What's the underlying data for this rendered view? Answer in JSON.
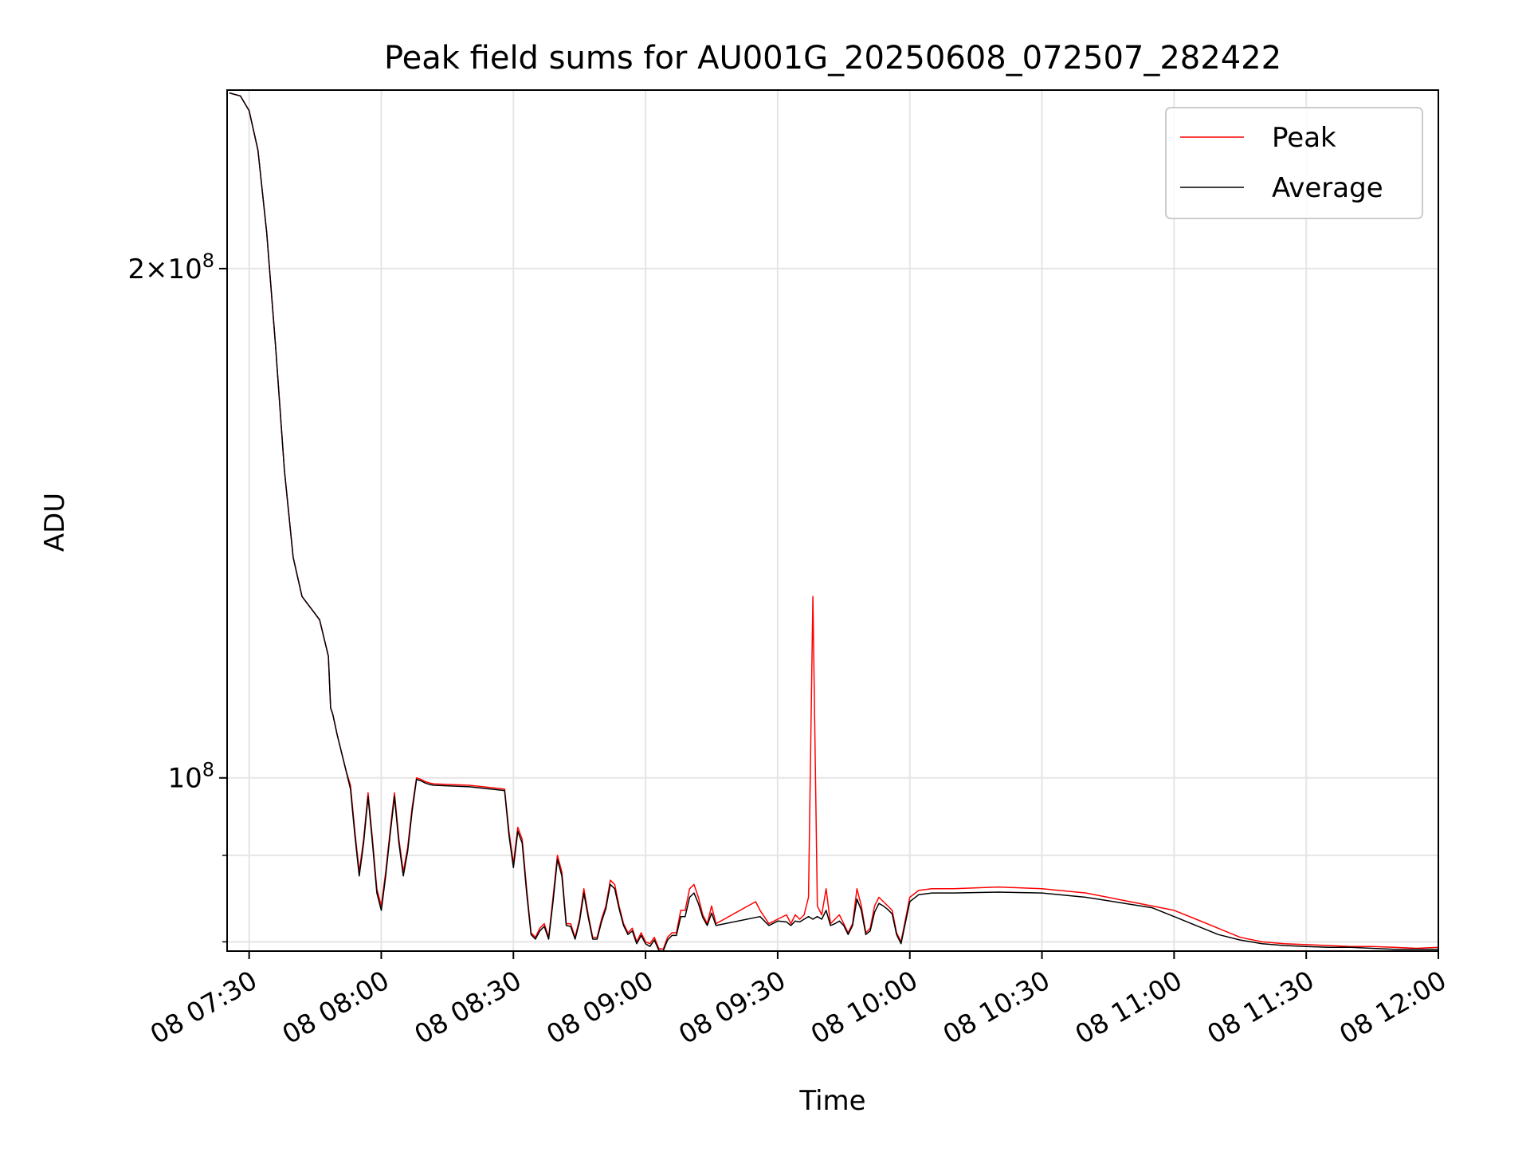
{
  "chart_data": {
    "type": "line",
    "title": "Peak field sums for AU001G_20250608_072507_282422",
    "xlabel": "Time",
    "ylabel": "ADU",
    "y_scale": "log",
    "grid": true,
    "legend_position": "top-right",
    "xlim": [
      "2025-06-08 07:25",
      "2025-06-08 12:00"
    ],
    "ylim": [
      79000000,
      255000000
    ],
    "x_ticks": [
      {
        "value": "2025-06-08 07:30",
        "label": "08 07:30"
      },
      {
        "value": "2025-06-08 08:00",
        "label": "08 08:00"
      },
      {
        "value": "2025-06-08 08:30",
        "label": "08 08:30"
      },
      {
        "value": "2025-06-08 09:00",
        "label": "08 09:00"
      },
      {
        "value": "2025-06-08 09:30",
        "label": "08 09:30"
      },
      {
        "value": "2025-06-08 10:00",
        "label": "08 10:00"
      },
      {
        "value": "2025-06-08 10:30",
        "label": "08 10:30"
      },
      {
        "value": "2025-06-08 11:00",
        "label": "08 11:00"
      },
      {
        "value": "2025-06-08 11:30",
        "label": "08 11:30"
      },
      {
        "value": "2025-06-08 12:00",
        "label": "08 12:00"
      }
    ],
    "y_major_ticks": [
      {
        "value": 100000000,
        "base": "10",
        "exp": "8",
        "coef": ""
      },
      {
        "value": 200000000,
        "base": "10",
        "exp": "8",
        "coef": "2×"
      }
    ],
    "y_minor_ticks": [
      80000000,
      90000000
    ],
    "series": [
      {
        "name": "Peak",
        "color": "#ff0000",
        "x": [
          "2025-06-08 07:25:30",
          "2025-06-08 07:28:00",
          "2025-06-08 07:30:00",
          "2025-06-08 07:32:00",
          "2025-06-08 07:34:00",
          "2025-06-08 07:36:00",
          "2025-06-08 07:38:00",
          "2025-06-08 07:40:00",
          "2025-06-08 07:42:00",
          "2025-06-08 07:44:00",
          "2025-06-08 07:46:00",
          "2025-06-08 07:48:00",
          "2025-06-08 07:48:30",
          "2025-06-08 07:49:00",
          "2025-06-08 07:50:00",
          "2025-06-08 07:52:00",
          "2025-06-08 07:53:00",
          "2025-06-08 07:54:00",
          "2025-06-08 07:55:00",
          "2025-06-08 07:56:00",
          "2025-06-08 07:57:00",
          "2025-06-08 07:58:00",
          "2025-06-08 07:59:00",
          "2025-06-08 08:00:00",
          "2025-06-08 08:01:00",
          "2025-06-08 08:02:00",
          "2025-06-08 08:03:00",
          "2025-06-08 08:04:00",
          "2025-06-08 08:05:00",
          "2025-06-08 08:06:00",
          "2025-06-08 08:07:00",
          "2025-06-08 08:08:00",
          "2025-06-08 08:09:00",
          "2025-06-08 08:10:00",
          "2025-06-08 08:11:00",
          "2025-06-08 08:12:00",
          "2025-06-08 08:20:00",
          "2025-06-08 08:28:00",
          "2025-06-08 08:29:00",
          "2025-06-08 08:30:00",
          "2025-06-08 08:31:00",
          "2025-06-08 08:32:00",
          "2025-06-08 08:33:00",
          "2025-06-08 08:34:00",
          "2025-06-08 08:35:00",
          "2025-06-08 08:36:00",
          "2025-06-08 08:37:00",
          "2025-06-08 08:38:00",
          "2025-06-08 08:39:00",
          "2025-06-08 08:40:00",
          "2025-06-08 08:41:00",
          "2025-06-08 08:42:00",
          "2025-06-08 08:43:00",
          "2025-06-08 08:44:00",
          "2025-06-08 08:45:00",
          "2025-06-08 08:46:00",
          "2025-06-08 08:47:00",
          "2025-06-08 08:48:00",
          "2025-06-08 08:49:00",
          "2025-06-08 08:50:00",
          "2025-06-08 08:51:00",
          "2025-06-08 08:52:00",
          "2025-06-08 08:53:00",
          "2025-06-08 08:54:00",
          "2025-06-08 08:55:00",
          "2025-06-08 08:56:00",
          "2025-06-08 08:57:00",
          "2025-06-08 08:58:00",
          "2025-06-08 08:59:00",
          "2025-06-08 09:00:00",
          "2025-06-08 09:01:00",
          "2025-06-08 09:02:00",
          "2025-06-08 09:03:00",
          "2025-06-08 09:04:00",
          "2025-06-08 09:05:00",
          "2025-06-08 09:06:00",
          "2025-06-08 09:07:00",
          "2025-06-08 09:08:00",
          "2025-06-08 09:09:00",
          "2025-06-08 09:10:00",
          "2025-06-08 09:11:00",
          "2025-06-08 09:12:00",
          "2025-06-08 09:13:00",
          "2025-06-08 09:14:00",
          "2025-06-08 09:15:00",
          "2025-06-08 09:16:00",
          "2025-06-08 09:25:00",
          "2025-06-08 09:26:00",
          "2025-06-08 09:28:00",
          "2025-06-08 09:30:00",
          "2025-06-08 09:32:00",
          "2025-06-08 09:33:00",
          "2025-06-08 09:34:00",
          "2025-06-08 09:35:00",
          "2025-06-08 09:36:00",
          "2025-06-08 09:37:00",
          "2025-06-08 09:38:00",
          "2025-06-08 09:39:00",
          "2025-06-08 09:40:00",
          "2025-06-08 09:41:00",
          "2025-06-08 09:42:00",
          "2025-06-08 09:43:00",
          "2025-06-08 09:44:00",
          "2025-06-08 09:45:00",
          "2025-06-08 09:46:00",
          "2025-06-08 09:47:00",
          "2025-06-08 09:48:00",
          "2025-06-08 09:49:00",
          "2025-06-08 09:50:00",
          "2025-06-08 09:51:00",
          "2025-06-08 09:52:00",
          "2025-06-08 09:53:00",
          "2025-06-08 09:54:00",
          "2025-06-08 09:55:00",
          "2025-06-08 09:56:00",
          "2025-06-08 09:57:00",
          "2025-06-08 09:58:00",
          "2025-06-08 10:00:00",
          "2025-06-08 10:02:00",
          "2025-06-08 10:05:00",
          "2025-06-08 10:10:00",
          "2025-06-08 10:20:00",
          "2025-06-08 10:30:00",
          "2025-06-08 10:40:00",
          "2025-06-08 10:50:00",
          "2025-06-08 10:55:00",
          "2025-06-08 11:00:00",
          "2025-06-08 11:05:00",
          "2025-06-08 11:10:00",
          "2025-06-08 11:15:00",
          "2025-06-08 11:20:00",
          "2025-06-08 11:25:00",
          "2025-06-08 11:30:00",
          "2025-06-08 11:35:00",
          "2025-06-08 11:40:00",
          "2025-06-08 11:45:00",
          "2025-06-08 11:50:00",
          "2025-06-08 11:55:00",
          "2025-06-08 12:00:00"
        ],
        "y": [
          254000000,
          253000000,
          248000000,
          235000000,
          210000000,
          180000000,
          152000000,
          135000000,
          128000000,
          126000000,
          124000000,
          118000000,
          110000000,
          109000000,
          106000000,
          101000000,
          99000000,
          93000000,
          88000000,
          92000000,
          98000000,
          92000000,
          86000000,
          84000000,
          88000000,
          93000000,
          98000000,
          92000000,
          88000000,
          91000000,
          96000000,
          100000000,
          99800000,
          99500000,
          99300000,
          99200000,
          99000000,
          98500000,
          93000000,
          89000000,
          93500000,
          92000000,
          86000000,
          81000000,
          80500000,
          81500000,
          82000000,
          80500000,
          85000000,
          90000000,
          88000000,
          82000000,
          82000000,
          80500000,
          82500000,
          86000000,
          83000000,
          80500000,
          80500000,
          82500000,
          84000000,
          87000000,
          86500000,
          84000000,
          82000000,
          81000000,
          81500000,
          80000000,
          81000000,
          80000000,
          79800000,
          80500000,
          79300000,
          79200000,
          80500000,
          81000000,
          81000000,
          83500000,
          83500000,
          86000000,
          86500000,
          85000000,
          83000000,
          82000000,
          84000000,
          82000000,
          84500000,
          83500000,
          82000000,
          82500000,
          83000000,
          82000000,
          83000000,
          82500000,
          83000000,
          85000000,
          128000000,
          84000000,
          83000000,
          86000000,
          82000000,
          82500000,
          83000000,
          82000000,
          81000000,
          82000000,
          86000000,
          84000000,
          81000000,
          81500000,
          84000000,
          85000000,
          84500000,
          84000000,
          83500000,
          81000000,
          80000000,
          85000000,
          85800000,
          86000000,
          86000000,
          86200000,
          86000000,
          85500000,
          84500000,
          84000000,
          83500000,
          82500000,
          81500000,
          80500000,
          80000000,
          79800000,
          79700000,
          79600000,
          79500000,
          79500000,
          79400000,
          79300000,
          79400000
        ]
      },
      {
        "name": "Average",
        "color": "#000000",
        "x": [
          "2025-06-08 07:25:30",
          "2025-06-08 07:28:00",
          "2025-06-08 07:30:00",
          "2025-06-08 07:32:00",
          "2025-06-08 07:34:00",
          "2025-06-08 07:36:00",
          "2025-06-08 07:38:00",
          "2025-06-08 07:40:00",
          "2025-06-08 07:42:00",
          "2025-06-08 07:44:00",
          "2025-06-08 07:46:00",
          "2025-06-08 07:48:00",
          "2025-06-08 07:48:30",
          "2025-06-08 07:49:00",
          "2025-06-08 07:50:00",
          "2025-06-08 07:52:00",
          "2025-06-08 07:53:00",
          "2025-06-08 07:54:00",
          "2025-06-08 07:55:00",
          "2025-06-08 07:56:00",
          "2025-06-08 07:57:00",
          "2025-06-08 07:58:00",
          "2025-06-08 07:59:00",
          "2025-06-08 08:00:00",
          "2025-06-08 08:01:00",
          "2025-06-08 08:02:00",
          "2025-06-08 08:03:00",
          "2025-06-08 08:04:00",
          "2025-06-08 08:05:00",
          "2025-06-08 08:06:00",
          "2025-06-08 08:07:00",
          "2025-06-08 08:08:00",
          "2025-06-08 08:09:00",
          "2025-06-08 08:10:00",
          "2025-06-08 08:11:00",
          "2025-06-08 08:12:00",
          "2025-06-08 08:20:00",
          "2025-06-08 08:28:00",
          "2025-06-08 08:29:00",
          "2025-06-08 08:30:00",
          "2025-06-08 08:31:00",
          "2025-06-08 08:32:00",
          "2025-06-08 08:33:00",
          "2025-06-08 08:34:00",
          "2025-06-08 08:35:00",
          "2025-06-08 08:36:00",
          "2025-06-08 08:37:00",
          "2025-06-08 08:38:00",
          "2025-06-08 08:39:00",
          "2025-06-08 08:40:00",
          "2025-06-08 08:41:00",
          "2025-06-08 08:42:00",
          "2025-06-08 08:43:00",
          "2025-06-08 08:44:00",
          "2025-06-08 08:45:00",
          "2025-06-08 08:46:00",
          "2025-06-08 08:47:00",
          "2025-06-08 08:48:00",
          "2025-06-08 08:49:00",
          "2025-06-08 08:50:00",
          "2025-06-08 08:51:00",
          "2025-06-08 08:52:00",
          "2025-06-08 08:53:00",
          "2025-06-08 08:54:00",
          "2025-06-08 08:55:00",
          "2025-06-08 08:56:00",
          "2025-06-08 08:57:00",
          "2025-06-08 08:58:00",
          "2025-06-08 08:59:00",
          "2025-06-08 09:00:00",
          "2025-06-08 09:01:00",
          "2025-06-08 09:02:00",
          "2025-06-08 09:03:00",
          "2025-06-08 09:04:00",
          "2025-06-08 09:05:00",
          "2025-06-08 09:06:00",
          "2025-06-08 09:07:00",
          "2025-06-08 09:08:00",
          "2025-06-08 09:09:00",
          "2025-06-08 09:10:00",
          "2025-06-08 09:11:00",
          "2025-06-08 09:12:00",
          "2025-06-08 09:13:00",
          "2025-06-08 09:14:00",
          "2025-06-08 09:15:00",
          "2025-06-08 09:16:00",
          "2025-06-08 09:25:00",
          "2025-06-08 09:26:00",
          "2025-06-08 09:28:00",
          "2025-06-08 09:30:00",
          "2025-06-08 09:32:00",
          "2025-06-08 09:33:00",
          "2025-06-08 09:34:00",
          "2025-06-08 09:35:00",
          "2025-06-08 09:36:00",
          "2025-06-08 09:37:00",
          "2025-06-08 09:38:00",
          "2025-06-08 09:39:00",
          "2025-06-08 09:40:00",
          "2025-06-08 09:41:00",
          "2025-06-08 09:42:00",
          "2025-06-08 09:43:00",
          "2025-06-08 09:44:00",
          "2025-06-08 09:45:00",
          "2025-06-08 09:46:00",
          "2025-06-08 09:47:00",
          "2025-06-08 09:48:00",
          "2025-06-08 09:49:00",
          "2025-06-08 09:50:00",
          "2025-06-08 09:51:00",
          "2025-06-08 09:52:00",
          "2025-06-08 09:53:00",
          "2025-06-08 09:54:00",
          "2025-06-08 09:55:00",
          "2025-06-08 09:56:00",
          "2025-06-08 09:57:00",
          "2025-06-08 09:58:00",
          "2025-06-08 10:00:00",
          "2025-06-08 10:02:00",
          "2025-06-08 10:05:00",
          "2025-06-08 10:10:00",
          "2025-06-08 10:20:00",
          "2025-06-08 10:30:00",
          "2025-06-08 10:40:00",
          "2025-06-08 10:50:00",
          "2025-06-08 10:55:00",
          "2025-06-08 11:00:00",
          "2025-06-08 11:05:00",
          "2025-06-08 11:10:00",
          "2025-06-08 11:15:00",
          "2025-06-08 11:20:00",
          "2025-06-08 11:25:00",
          "2025-06-08 11:30:00",
          "2025-06-08 11:35:00",
          "2025-06-08 11:40:00",
          "2025-06-08 11:45:00",
          "2025-06-08 11:50:00",
          "2025-06-08 11:55:00",
          "2025-06-08 12:00:00"
        ],
        "y": [
          254000000,
          253000000,
          248000000,
          235000000,
          210000000,
          180000000,
          152000000,
          135000000,
          128000000,
          126000000,
          124000000,
          118000000,
          110000000,
          109000000,
          106000000,
          101000000,
          98500000,
          92500000,
          87500000,
          91500000,
          97500000,
          91500000,
          85500000,
          83500000,
          87500000,
          92500000,
          97500000,
          91500000,
          87500000,
          90500000,
          95500000,
          99800000,
          99600000,
          99300000,
          99100000,
          99000000,
          98800000,
          98300000,
          92500000,
          88500000,
          93000000,
          91500000,
          85500000,
          80800000,
          80300000,
          81200000,
          81700000,
          80300000,
          84500000,
          89500000,
          87500000,
          81800000,
          81700000,
          80300000,
          82200000,
          85500000,
          82700000,
          80300000,
          80300000,
          82200000,
          83700000,
          86500000,
          86000000,
          83700000,
          81800000,
          80800000,
          81200000,
          79800000,
          80700000,
          79800000,
          79500000,
          80200000,
          79100000,
          79000000,
          80200000,
          80700000,
          80700000,
          82800000,
          82800000,
          85000000,
          85500000,
          84300000,
          82700000,
          81800000,
          83200000,
          81800000,
          82700000,
          82800000,
          81800000,
          82300000,
          82200000,
          81800000,
          82300000,
          82200000,
          82500000,
          82800000,
          82500000,
          82800000,
          82500000,
          83500000,
          81800000,
          82000000,
          82300000,
          81800000,
          80800000,
          81800000,
          84800000,
          83500000,
          80800000,
          81200000,
          83300000,
          84300000,
          84000000,
          83600000,
          83100000,
          80800000,
          79800000,
          84500000,
          85300000,
          85500000,
          85500000,
          85600000,
          85500000,
          85000000,
          84200000,
          83800000,
          82800000,
          81800000,
          80800000,
          80200000,
          79800000,
          79600000,
          79500000,
          79400000,
          79400000,
          79300000,
          79200000,
          79200000,
          79200000
        ]
      }
    ]
  }
}
